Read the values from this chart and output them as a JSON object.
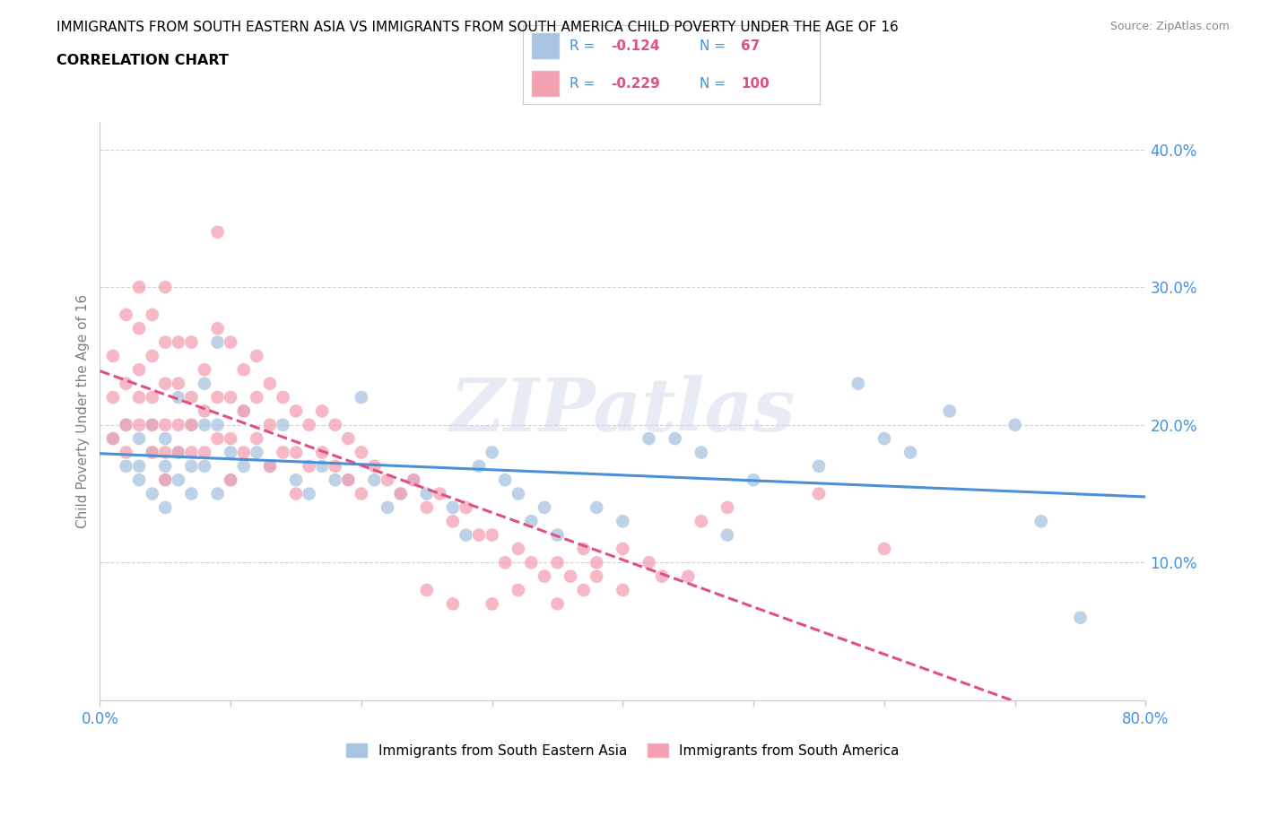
{
  "title_line1": "IMMIGRANTS FROM SOUTH EASTERN ASIA VS IMMIGRANTS FROM SOUTH AMERICA CHILD POVERTY UNDER THE AGE OF 16",
  "title_line2": "CORRELATION CHART",
  "source_text": "Source: ZipAtlas.com",
  "ylabel": "Child Poverty Under the Age of 16",
  "xlim": [
    0,
    0.8
  ],
  "ylim": [
    0,
    0.42
  ],
  "xticks": [
    0.0,
    0.1,
    0.2,
    0.3,
    0.4,
    0.5,
    0.6,
    0.7,
    0.8
  ],
  "yticks": [
    0.0,
    0.1,
    0.2,
    0.3,
    0.4
  ],
  "color_blue": "#a8c4e0",
  "color_pink": "#f4a0b0",
  "trend_color_blue": "#4a90d9",
  "trend_color_pink": "#e05080",
  "R_blue": -0.124,
  "N_blue": 67,
  "R_pink": -0.229,
  "N_pink": 100,
  "legend_label_blue": "Immigrants from South Eastern Asia",
  "legend_label_pink": "Immigrants from South America",
  "watermark": "ZIPatlas",
  "blue_points": [
    [
      0.01,
      0.19
    ],
    [
      0.02,
      0.2
    ],
    [
      0.02,
      0.17
    ],
    [
      0.03,
      0.19
    ],
    [
      0.03,
      0.17
    ],
    [
      0.03,
      0.16
    ],
    [
      0.04,
      0.2
    ],
    [
      0.04,
      0.18
    ],
    [
      0.04,
      0.15
    ],
    [
      0.05,
      0.19
    ],
    [
      0.05,
      0.17
    ],
    [
      0.05,
      0.16
    ],
    [
      0.05,
      0.14
    ],
    [
      0.06,
      0.22
    ],
    [
      0.06,
      0.18
    ],
    [
      0.06,
      0.16
    ],
    [
      0.07,
      0.2
    ],
    [
      0.07,
      0.17
    ],
    [
      0.07,
      0.15
    ],
    [
      0.08,
      0.23
    ],
    [
      0.08,
      0.2
    ],
    [
      0.08,
      0.17
    ],
    [
      0.09,
      0.26
    ],
    [
      0.09,
      0.2
    ],
    [
      0.09,
      0.15
    ],
    [
      0.1,
      0.18
    ],
    [
      0.1,
      0.16
    ],
    [
      0.11,
      0.21
    ],
    [
      0.11,
      0.17
    ],
    [
      0.12,
      0.18
    ],
    [
      0.13,
      0.17
    ],
    [
      0.14,
      0.2
    ],
    [
      0.15,
      0.16
    ],
    [
      0.16,
      0.15
    ],
    [
      0.17,
      0.17
    ],
    [
      0.18,
      0.16
    ],
    [
      0.19,
      0.16
    ],
    [
      0.2,
      0.22
    ],
    [
      0.21,
      0.16
    ],
    [
      0.22,
      0.14
    ],
    [
      0.23,
      0.15
    ],
    [
      0.24,
      0.16
    ],
    [
      0.25,
      0.15
    ],
    [
      0.27,
      0.14
    ],
    [
      0.28,
      0.12
    ],
    [
      0.29,
      0.17
    ],
    [
      0.3,
      0.18
    ],
    [
      0.31,
      0.16
    ],
    [
      0.32,
      0.15
    ],
    [
      0.33,
      0.13
    ],
    [
      0.34,
      0.14
    ],
    [
      0.35,
      0.12
    ],
    [
      0.38,
      0.14
    ],
    [
      0.4,
      0.13
    ],
    [
      0.42,
      0.19
    ],
    [
      0.44,
      0.19
    ],
    [
      0.46,
      0.18
    ],
    [
      0.48,
      0.12
    ],
    [
      0.5,
      0.16
    ],
    [
      0.55,
      0.17
    ],
    [
      0.58,
      0.23
    ],
    [
      0.6,
      0.19
    ],
    [
      0.62,
      0.18
    ],
    [
      0.65,
      0.21
    ],
    [
      0.7,
      0.2
    ],
    [
      0.72,
      0.13
    ],
    [
      0.75,
      0.06
    ]
  ],
  "pink_points": [
    [
      0.01,
      0.19
    ],
    [
      0.01,
      0.22
    ],
    [
      0.01,
      0.25
    ],
    [
      0.02,
      0.28
    ],
    [
      0.02,
      0.23
    ],
    [
      0.02,
      0.2
    ],
    [
      0.02,
      0.18
    ],
    [
      0.03,
      0.3
    ],
    [
      0.03,
      0.27
    ],
    [
      0.03,
      0.24
    ],
    [
      0.03,
      0.22
    ],
    [
      0.03,
      0.2
    ],
    [
      0.04,
      0.28
    ],
    [
      0.04,
      0.25
    ],
    [
      0.04,
      0.22
    ],
    [
      0.04,
      0.2
    ],
    [
      0.04,
      0.18
    ],
    [
      0.05,
      0.3
    ],
    [
      0.05,
      0.26
    ],
    [
      0.05,
      0.23
    ],
    [
      0.05,
      0.2
    ],
    [
      0.05,
      0.18
    ],
    [
      0.05,
      0.16
    ],
    [
      0.06,
      0.26
    ],
    [
      0.06,
      0.23
    ],
    [
      0.06,
      0.2
    ],
    [
      0.06,
      0.18
    ],
    [
      0.07,
      0.26
    ],
    [
      0.07,
      0.22
    ],
    [
      0.07,
      0.2
    ],
    [
      0.07,
      0.18
    ],
    [
      0.08,
      0.24
    ],
    [
      0.08,
      0.21
    ],
    [
      0.08,
      0.18
    ],
    [
      0.09,
      0.34
    ],
    [
      0.09,
      0.27
    ],
    [
      0.09,
      0.22
    ],
    [
      0.09,
      0.19
    ],
    [
      0.1,
      0.26
    ],
    [
      0.1,
      0.22
    ],
    [
      0.1,
      0.19
    ],
    [
      0.1,
      0.16
    ],
    [
      0.11,
      0.24
    ],
    [
      0.11,
      0.21
    ],
    [
      0.11,
      0.18
    ],
    [
      0.12,
      0.25
    ],
    [
      0.12,
      0.22
    ],
    [
      0.12,
      0.19
    ],
    [
      0.13,
      0.23
    ],
    [
      0.13,
      0.2
    ],
    [
      0.13,
      0.17
    ],
    [
      0.14,
      0.22
    ],
    [
      0.14,
      0.18
    ],
    [
      0.15,
      0.21
    ],
    [
      0.15,
      0.18
    ],
    [
      0.15,
      0.15
    ],
    [
      0.16,
      0.2
    ],
    [
      0.16,
      0.17
    ],
    [
      0.17,
      0.21
    ],
    [
      0.17,
      0.18
    ],
    [
      0.18,
      0.2
    ],
    [
      0.18,
      0.17
    ],
    [
      0.19,
      0.19
    ],
    [
      0.19,
      0.16
    ],
    [
      0.2,
      0.18
    ],
    [
      0.2,
      0.15
    ],
    [
      0.21,
      0.17
    ],
    [
      0.22,
      0.16
    ],
    [
      0.23,
      0.15
    ],
    [
      0.24,
      0.16
    ],
    [
      0.25,
      0.14
    ],
    [
      0.26,
      0.15
    ],
    [
      0.27,
      0.13
    ],
    [
      0.28,
      0.14
    ],
    [
      0.29,
      0.12
    ],
    [
      0.3,
      0.12
    ],
    [
      0.31,
      0.1
    ],
    [
      0.32,
      0.11
    ],
    [
      0.33,
      0.1
    ],
    [
      0.34,
      0.09
    ],
    [
      0.35,
      0.1
    ],
    [
      0.36,
      0.09
    ],
    [
      0.37,
      0.08
    ],
    [
      0.38,
      0.09
    ],
    [
      0.4,
      0.08
    ],
    [
      0.25,
      0.08
    ],
    [
      0.27,
      0.07
    ],
    [
      0.3,
      0.07
    ],
    [
      0.32,
      0.08
    ],
    [
      0.35,
      0.07
    ],
    [
      0.37,
      0.11
    ],
    [
      0.38,
      0.1
    ],
    [
      0.4,
      0.11
    ],
    [
      0.42,
      0.1
    ],
    [
      0.43,
      0.09
    ],
    [
      0.45,
      0.09
    ],
    [
      0.46,
      0.13
    ],
    [
      0.48,
      0.14
    ],
    [
      0.55,
      0.15
    ],
    [
      0.6,
      0.11
    ]
  ]
}
